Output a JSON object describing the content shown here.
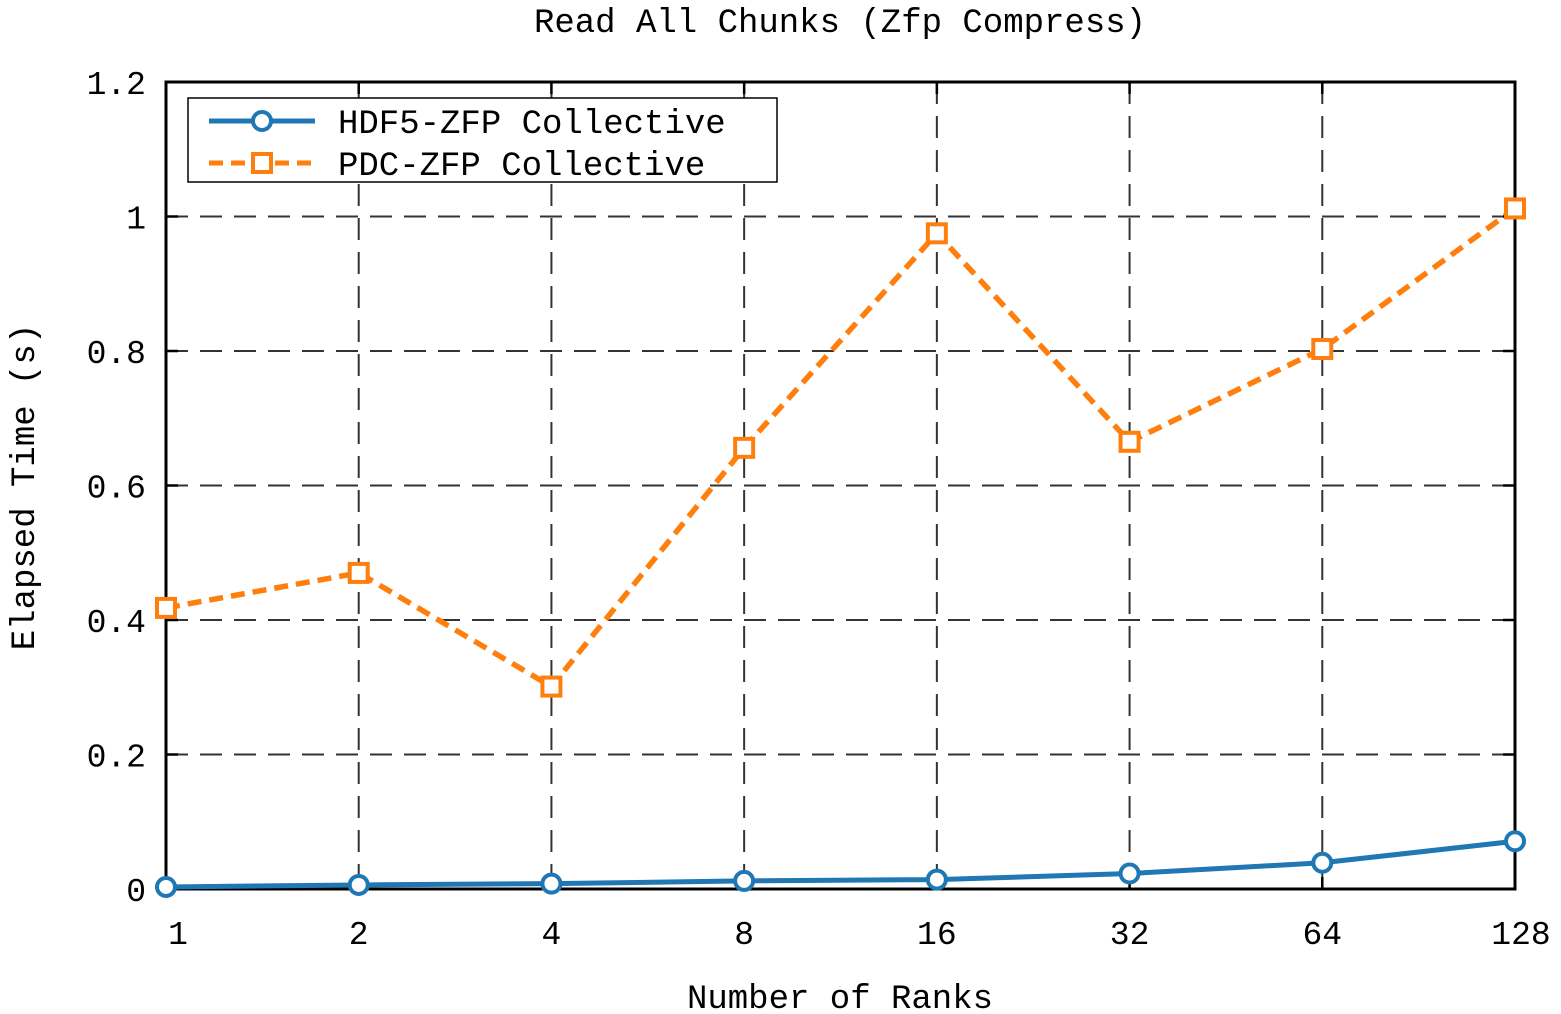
{
  "chart_data": {
    "type": "line",
    "title": "Read All Chunks (Zfp Compress)",
    "xlabel": "Number of Ranks",
    "ylabel": "Elapsed Time (s)",
    "categories": [
      "1",
      "2",
      "4",
      "8",
      "16",
      "32",
      "64",
      "128"
    ],
    "yticks": [
      "0",
      "0.2",
      "0.4",
      "0.6",
      "0.8",
      "1",
      "1.2"
    ],
    "ylim": [
      0,
      1.2
    ],
    "grid": true,
    "legend_position": "top-left",
    "series": [
      {
        "name": "HDF5-ZFP Collective",
        "color": "#1f77b4",
        "marker": "circle",
        "line_style": "solid",
        "values": [
          0.003,
          0.006,
          0.008,
          0.012,
          0.014,
          0.023,
          0.039,
          0.071
        ]
      },
      {
        "name": "PDC-ZFP Collective",
        "color": "#ff7f0e",
        "marker": "square",
        "line_style": "dashed",
        "values": [
          0.418,
          0.47,
          0.301,
          0.656,
          0.975,
          0.665,
          0.803,
          1.012
        ]
      }
    ]
  }
}
